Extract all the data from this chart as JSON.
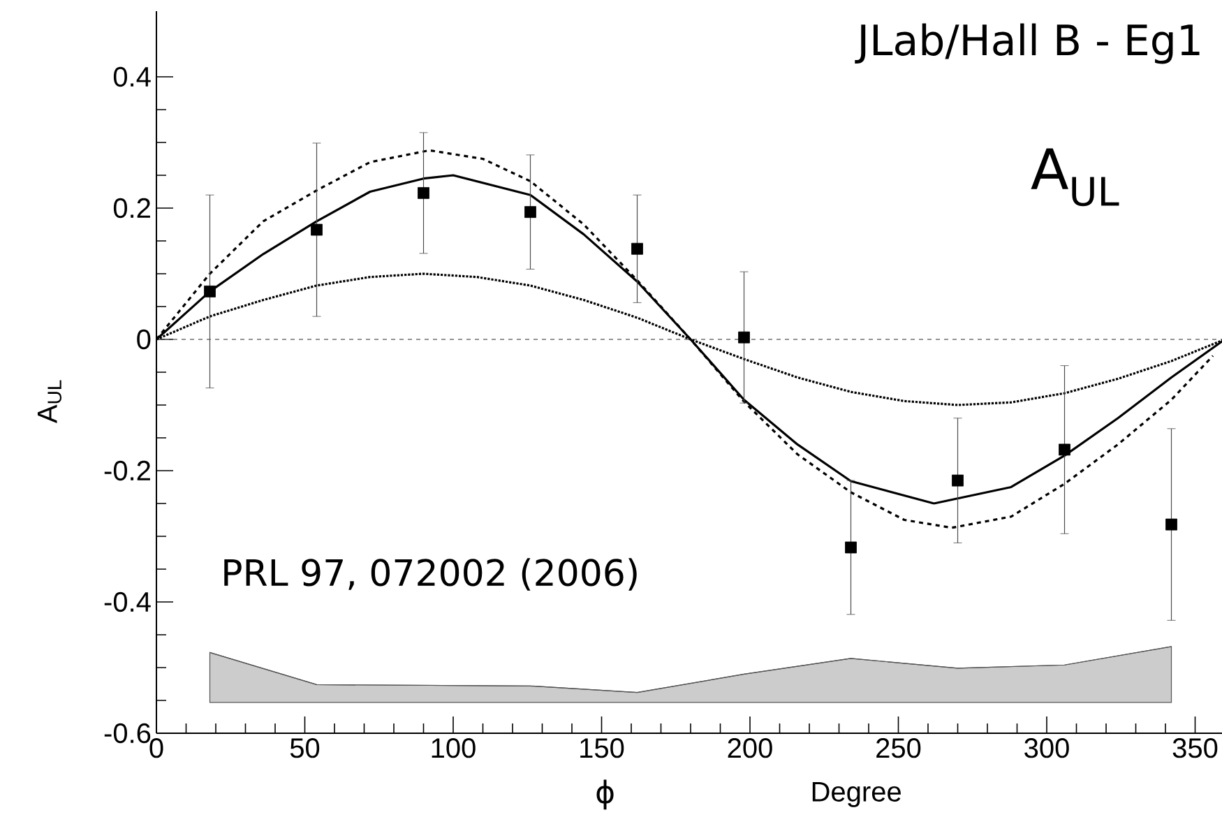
{
  "chart_data": {
    "type": "scatter",
    "xlabel": "ϕ",
    "ylabel": "A$_{UL}$",
    "annotations": [
      "JLab/Hall B - Eg1",
      "A$_{UL}$",
      "PRL 97, 072002 (2006)",
      "Degree"
    ],
    "xlim": [
      0,
      360
    ],
    "ylim": [
      -0.6,
      0.5
    ],
    "xticks": [
      0,
      50,
      100,
      150,
      200,
      250,
      300,
      350
    ],
    "yticks": [
      {
        "value": -0.6,
        "label": "-0.6"
      },
      {
        "value": -0.4,
        "label": "-0.4"
      },
      {
        "value": -0.2,
        "label": "-0.2"
      },
      {
        "value": 0,
        "label": "0"
      },
      {
        "value": 0.2,
        "label": "0.2"
      },
      {
        "value": 0.4,
        "label": "0.4"
      }
    ],
    "grid": false,
    "ref_lines": [
      {
        "axis": "y",
        "value": 0,
        "color": "#707070",
        "line_style": "dashed"
      }
    ],
    "series": [
      {
        "type": "line",
        "color": "#555555",
        "line_style": "solid",
        "marker": "none",
        "x": [
          18,
          54,
          90,
          126,
          162,
          198,
          234,
          270,
          306,
          342
        ],
        "values": [
          -0.477,
          -0.526,
          -0.527,
          -0.528,
          -0.538,
          -0.51,
          -0.486,
          -0.501,
          -0.496,
          -0.468
        ],
        "upper": [
          -0.477,
          -0.526,
          -0.527,
          -0.528,
          -0.538,
          -0.51,
          -0.486,
          -0.501,
          -0.496,
          -0.468
        ],
        "lower": [
          -0.553,
          -0.553,
          -0.553,
          -0.553,
          -0.553,
          -0.553,
          -0.553,
          -0.553,
          -0.553,
          -0.553
        ]
      },
      {
        "type": "line",
        "color": "#000000",
        "line_style": "dashed",
        "marker": "none",
        "x": [
          0,
          18,
          36,
          54,
          72,
          92,
          110,
          126,
          144,
          162,
          180,
          198,
          216,
          234,
          252,
          268,
          288,
          306,
          324,
          342,
          356
        ],
        "values": [
          0,
          0.1,
          0.18,
          0.227,
          0.27,
          0.288,
          0.275,
          0.241,
          0.175,
          0.09,
          0,
          -0.095,
          -0.175,
          -0.233,
          -0.275,
          -0.287,
          -0.27,
          -0.22,
          -0.16,
          -0.092,
          -0.025
        ]
      },
      {
        "type": "line",
        "color": "#000000",
        "line_style": "solid",
        "marker": "none",
        "x": [
          0,
          18,
          36,
          54,
          72,
          90,
          100,
          126,
          144,
          162,
          180,
          198,
          216,
          234,
          262,
          288,
          306,
          324,
          342,
          360
        ],
        "values": [
          0,
          0.073,
          0.13,
          0.18,
          0.225,
          0.245,
          0.25,
          0.22,
          0.16,
          0.088,
          0,
          -0.092,
          -0.16,
          -0.216,
          -0.25,
          -0.225,
          -0.177,
          -0.12,
          -0.058,
          0
        ]
      },
      {
        "type": "line",
        "color": "#000000",
        "line_style": "dotted",
        "marker": "none",
        "x": [
          0,
          18,
          36,
          54,
          72,
          90,
          108,
          126,
          144,
          162,
          180,
          198,
          216,
          234,
          252,
          270,
          288,
          306,
          324,
          342,
          360
        ],
        "values": [
          0,
          0.035,
          0.06,
          0.082,
          0.095,
          0.1,
          0.095,
          0.082,
          0.06,
          0.033,
          0,
          -0.03,
          -0.058,
          -0.08,
          -0.094,
          -0.1,
          -0.096,
          -0.082,
          -0.06,
          -0.033,
          0
        ]
      },
      {
        "color": "#000000",
        "marker": "square",
        "x": [
          18,
          54,
          90,
          126,
          162,
          198,
          234,
          270,
          306,
          342
        ],
        "values": [
          0.073,
          0.167,
          0.223,
          0.194,
          0.138,
          0.003,
          -0.317,
          -0.215,
          -0.168,
          -0.282
        ],
        "errors": [
          0.147,
          0.132,
          0.092,
          0.087,
          0.082,
          0.1,
          0.102,
          0.095,
          0.128,
          0.146
        ]
      }
    ]
  }
}
